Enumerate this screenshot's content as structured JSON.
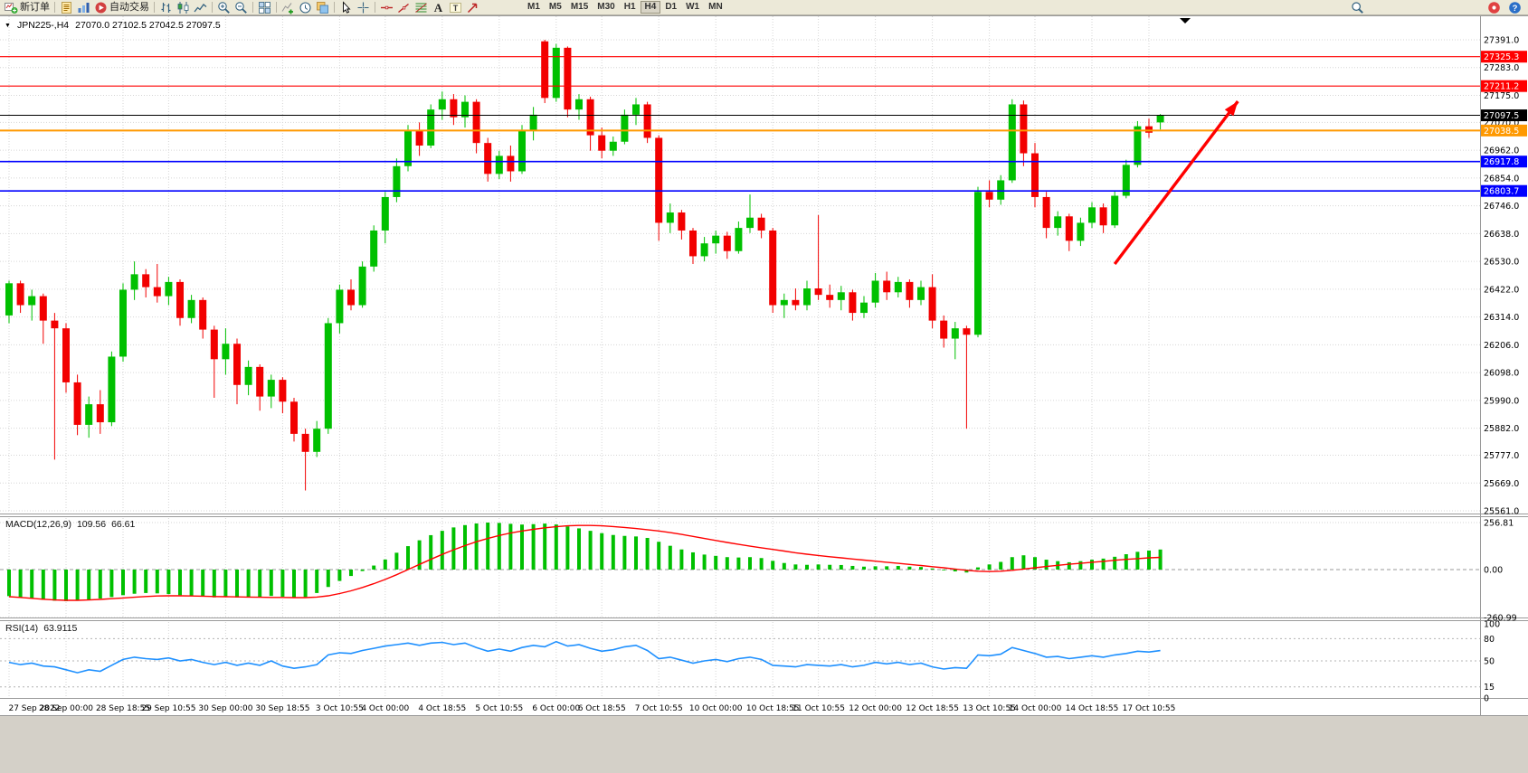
{
  "toolbar": {
    "items": [
      {
        "name": "new-order-button",
        "icon": "chart-plus",
        "label": "新订单"
      },
      {
        "sep": true
      },
      {
        "name": "metaeditor-icon",
        "icon": "doc"
      },
      {
        "name": "market-watch-icon",
        "icon": "bars-blue"
      },
      {
        "name": "autotrading-button",
        "icon": "play-red",
        "label": "自动交易"
      },
      {
        "sep": true
      },
      {
        "name": "ohlc-bars-icon",
        "icon": "ohlc"
      },
      {
        "name": "candlestick-chart-icon",
        "icon": "candles"
      },
      {
        "name": "line-chart-icon",
        "icon": "line-chart"
      },
      {
        "sep": true
      },
      {
        "name": "zoom-in-icon",
        "icon": "zoom-in"
      },
      {
        "name": "zoom-out-icon",
        "icon": "zoom-out"
      },
      {
        "sep": true
      },
      {
        "name": "tile-windows-icon",
        "icon": "tile"
      },
      {
        "sep": true
      },
      {
        "name": "indicators-icon",
        "icon": "indicator-plus"
      },
      {
        "name": "periods-icon",
        "icon": "clock"
      },
      {
        "name": "templates-icon",
        "icon": "template"
      },
      {
        "sep": true
      },
      {
        "name": "cursor-icon",
        "icon": "cursor"
      },
      {
        "name": "crosshair-icon",
        "icon": "crosshair"
      },
      {
        "sep": true
      },
      {
        "name": "horizontal-line-icon",
        "icon": "h-line"
      },
      {
        "name": "trendline-icon",
        "icon": "t-line"
      },
      {
        "name": "fibonacci-icon",
        "icon": "fibo"
      },
      {
        "name": "text-icon",
        "icon": "text-a"
      },
      {
        "name": "text-label-icon",
        "icon": "text-t"
      },
      {
        "name": "arrows-icon",
        "icon": "arrow"
      }
    ],
    "timeframes": [
      "M1",
      "M5",
      "M15",
      "M30",
      "H1",
      "H4",
      "D1",
      "W1",
      "MN"
    ],
    "active_timeframe": "H4",
    "right_items": [
      {
        "name": "search-icon",
        "icon": "search"
      },
      {
        "name": "notifications-icon",
        "icon": "circle-red"
      },
      {
        "name": "help-icon",
        "icon": "circle-blue"
      }
    ]
  },
  "chart_title": {
    "symbol_period": "JPN225-,H4",
    "ohlc_values": "27070.0 27102.5 27042.5 27097.5"
  },
  "chart_data": {
    "type": "candlestick",
    "symbol": "JPN225-",
    "period": "H4",
    "up_color": "#00C000",
    "down_color": "#F20000",
    "y_min": 25561.0,
    "y_max": 27391.0,
    "y_plain_labels": [
      "27391.0",
      "27283.0",
      "27175.0",
      "27070.0",
      "26962.0",
      "26854.0",
      "26746.0",
      "26638.0",
      "26530.0",
      "26422.0",
      "26314.0",
      "26206.0",
      "26098.0",
      "25990.0",
      "25882.0",
      "25777.0",
      "25669.0",
      "25561.0"
    ],
    "x_labels": [
      "27 Sep 2022",
      "28 Sep 00:00",
      "28 Sep 18:55",
      "29 Sep 10:55",
      "30 Sep 00:00",
      "30 Sep 18:55",
      "3 Oct 10:55",
      "4 Oct 00:00",
      "4 Oct 18:55",
      "5 Oct 10:55",
      "6 Oct 00:00",
      "6 Oct 18:55",
      "7 Oct 10:55",
      "10 Oct 00:00",
      "10 Oct 18:55",
      "11 Oct 10:55",
      "12 Oct 00:00",
      "12 Oct 18:55",
      "13 Oct 10:55",
      "14 Oct 00:00",
      "14 Oct 18:55",
      "17 Oct 10:55"
    ],
    "x_label_bar_index": [
      0,
      5,
      10,
      14,
      19,
      24,
      29,
      33,
      38,
      43,
      48,
      52,
      57,
      62,
      67,
      71,
      76,
      81,
      86,
      90,
      95,
      100
    ],
    "candles": [
      [
        26320,
        26455,
        26290,
        26445
      ],
      [
        26445,
        26455,
        26330,
        26360
      ],
      [
        26360,
        26420,
        26300,
        26395
      ],
      [
        26395,
        26405,
        26210,
        26300
      ],
      [
        26300,
        26330,
        25760,
        26270
      ],
      [
        26270,
        26290,
        26020,
        26060
      ],
      [
        26060,
        26090,
        25855,
        25895
      ],
      [
        25895,
        26005,
        25845,
        25975
      ],
      [
        25975,
        26030,
        25860,
        25905
      ],
      [
        25905,
        26180,
        25890,
        26160
      ],
      [
        26160,
        26445,
        26140,
        26420
      ],
      [
        26420,
        26530,
        26380,
        26480
      ],
      [
        26480,
        26500,
        26390,
        26430
      ],
      [
        26430,
        26520,
        26370,
        26395
      ],
      [
        26395,
        26470,
        26360,
        26450
      ],
      [
        26450,
        26460,
        26280,
        26310
      ],
      [
        26310,
        26400,
        26290,
        26380
      ],
      [
        26380,
        26390,
        26230,
        26265
      ],
      [
        26265,
        26280,
        26000,
        26150
      ],
      [
        26150,
        26270,
        26090,
        26210
      ],
      [
        26210,
        26230,
        25975,
        26050
      ],
      [
        26050,
        26145,
        26010,
        26120
      ],
      [
        26120,
        26130,
        25950,
        26005
      ],
      [
        26005,
        26090,
        25960,
        26070
      ],
      [
        26070,
        26080,
        25940,
        25985
      ],
      [
        25985,
        26000,
        25830,
        25860
      ],
      [
        25860,
        25880,
        25640,
        25790
      ],
      [
        25790,
        25910,
        25770,
        25880
      ],
      [
        25880,
        26310,
        25860,
        26290
      ],
      [
        26290,
        26440,
        26250,
        26420
      ],
      [
        26420,
        26460,
        26340,
        26360
      ],
      [
        26360,
        26530,
        26350,
        26510
      ],
      [
        26510,
        26670,
        26490,
        26650
      ],
      [
        26650,
        26800,
        26600,
        26780
      ],
      [
        26780,
        26930,
        26760,
        26900
      ],
      [
        26900,
        27060,
        26880,
        27040
      ],
      [
        27040,
        27070,
        26940,
        26980
      ],
      [
        26980,
        27140,
        26970,
        27120
      ],
      [
        27120,
        27190,
        27080,
        27160
      ],
      [
        27160,
        27180,
        27060,
        27090
      ],
      [
        27090,
        27175,
        27050,
        27150
      ],
      [
        27150,
        27160,
        26950,
        26990
      ],
      [
        26990,
        27010,
        26840,
        26870
      ],
      [
        26870,
        26960,
        26850,
        26940
      ],
      [
        26940,
        26980,
        26840,
        26880
      ],
      [
        26880,
        27060,
        26870,
        27040
      ],
      [
        27040,
        27130,
        27000,
        27100
      ],
      [
        27385,
        27391,
        27145,
        27165
      ],
      [
        27165,
        27375,
        27150,
        27360
      ],
      [
        27360,
        27365,
        27090,
        27120
      ],
      [
        27120,
        27180,
        27080,
        27160
      ],
      [
        27160,
        27170,
        26960,
        27020
      ],
      [
        27020,
        27050,
        26930,
        26960
      ],
      [
        26960,
        27015,
        26940,
        26995
      ],
      [
        26995,
        27120,
        26985,
        27100
      ],
      [
        27100,
        27165,
        27060,
        27140
      ],
      [
        27140,
        27150,
        26990,
        27010
      ],
      [
        27010,
        27020,
        26610,
        26680
      ],
      [
        26680,
        26755,
        26640,
        26720
      ],
      [
        26720,
        26730,
        26615,
        26650
      ],
      [
        26650,
        26660,
        26520,
        26550
      ],
      [
        26550,
        26625,
        26530,
        26600
      ],
      [
        26600,
        26650,
        26560,
        26630
      ],
      [
        26630,
        26645,
        26540,
        26570
      ],
      [
        26570,
        26685,
        26560,
        26660
      ],
      [
        26660,
        26790,
        26640,
        26700
      ],
      [
        26700,
        26715,
        26620,
        26650
      ],
      [
        26650,
        26660,
        26330,
        26360
      ],
      [
        26360,
        26405,
        26310,
        26380
      ],
      [
        26380,
        26425,
        26340,
        26360
      ],
      [
        26360,
        26455,
        26340,
        26425
      ],
      [
        26425,
        26710,
        26380,
        26400
      ],
      [
        26400,
        26440,
        26350,
        26380
      ],
      [
        26380,
        26435,
        26340,
        26410
      ],
      [
        26410,
        26420,
        26300,
        26330
      ],
      [
        26330,
        26395,
        26310,
        26370
      ],
      [
        26370,
        26485,
        26350,
        26455
      ],
      [
        26455,
        26490,
        26380,
        26410
      ],
      [
        26410,
        26470,
        26390,
        26450
      ],
      [
        26450,
        26460,
        26350,
        26380
      ],
      [
        26380,
        26455,
        26360,
        26430
      ],
      [
        26430,
        26480,
        26270,
        26300
      ],
      [
        26300,
        26320,
        26195,
        26230
      ],
      [
        26230,
        26295,
        26150,
        26270
      ],
      [
        26270,
        26280,
        25880,
        26245
      ],
      [
        26245,
        26820,
        26235,
        26800
      ],
      [
        26800,
        26845,
        26740,
        26770
      ],
      [
        26770,
        26865,
        26750,
        26845
      ],
      [
        26845,
        27160,
        26835,
        27140
      ],
      [
        27140,
        27155,
        26900,
        26950
      ],
      [
        26950,
        26990,
        26740,
        26780
      ],
      [
        26780,
        26800,
        26620,
        26660
      ],
      [
        26660,
        26725,
        26630,
        26705
      ],
      [
        26705,
        26715,
        26570,
        26610
      ],
      [
        26610,
        26700,
        26590,
        26680
      ],
      [
        26680,
        26760,
        26660,
        26740
      ],
      [
        26740,
        26755,
        26640,
        26670
      ],
      [
        26670,
        26805,
        26660,
        26785
      ],
      [
        26785,
        26925,
        26775,
        26905
      ],
      [
        26905,
        27075,
        26895,
        27055
      ],
      [
        27055,
        27085,
        27010,
        27030
      ],
      [
        27070,
        27102.5,
        27042.5,
        27097.5
      ]
    ],
    "horizontal_lines": [
      {
        "value": 27325.3,
        "color": "#FF0000",
        "width": 1.2,
        "badge": true
      },
      {
        "value": 27211.2,
        "color": "#FF0000",
        "width": 1.2,
        "badge": true
      },
      {
        "value": 27097.5,
        "color": "#000000",
        "width": 1,
        "badge": true,
        "role": "current-price"
      },
      {
        "value": 27038.5,
        "color": "#FF9900",
        "width": 2,
        "badge": true
      },
      {
        "value": 26917.8,
        "color": "#0000FF",
        "width": 1.6,
        "badge": true
      },
      {
        "value": 26803.7,
        "color": "#0000FF",
        "width": 1.6,
        "badge": true
      }
    ],
    "arrow_object": {
      "color": "#FF0000",
      "width": 3.4,
      "from_bar": 97,
      "from_price": 26520,
      "to_bar": 107.8,
      "to_price": 27152
    },
    "macd": {
      "label": "MACD(12,26,9)",
      "main_value": "109.56",
      "signal_value": "66.61",
      "histogram_color": "#00C000",
      "signal_color": "#FF0000",
      "scale_labels": [
        "256.81",
        "0.00",
        "-260.99"
      ],
      "scale_values": [
        256.81,
        0,
        -260.99
      ],
      "histogram": [
        -145,
        -152,
        -158,
        -165,
        -170,
        -172,
        -170,
        -165,
        -158,
        -150,
        -140,
        -132,
        -128,
        -130,
        -134,
        -140,
        -143,
        -147,
        -152,
        -148,
        -153,
        -148,
        -152,
        -144,
        -148,
        -155,
        -150,
        -128,
        -95,
        -62,
        -35,
        -8,
        22,
        55,
        92,
        128,
        160,
        188,
        212,
        230,
        243,
        252,
        257,
        255,
        250,
        246,
        248,
        251,
        246,
        236,
        225,
        212,
        199,
        189,
        184,
        181,
        173,
        152,
        130,
        110,
        94,
        82,
        75,
        68,
        66,
        68,
        63,
        48,
        36,
        28,
        26,
        28,
        26,
        25,
        20,
        16,
        18,
        18,
        20,
        16,
        14,
        6,
        -4,
        -10,
        -16,
        12,
        28,
        42,
        68,
        78,
        68,
        54,
        46,
        40,
        46,
        54,
        60,
        70,
        84,
        97,
        104,
        109.56
      ],
      "signal": [
        -148,
        -152,
        -157,
        -162,
        -166,
        -168,
        -168,
        -166,
        -163,
        -159,
        -155,
        -151,
        -147,
        -144,
        -143,
        -143,
        -144,
        -145,
        -147,
        -148,
        -149,
        -150,
        -151,
        -152,
        -152,
        -153,
        -153,
        -150,
        -143,
        -131,
        -116,
        -98,
        -77,
        -54,
        -28,
        0,
        28,
        56,
        83,
        108,
        131,
        152,
        170,
        186,
        200,
        211,
        220,
        228,
        234,
        239,
        241,
        241,
        239,
        235,
        230,
        224,
        218,
        211,
        202,
        192,
        181,
        170,
        159,
        148,
        138,
        128,
        119,
        110,
        101,
        92,
        84,
        77,
        70,
        64,
        58,
        52,
        46,
        40,
        34,
        28,
        22,
        16,
        10,
        3,
        -4,
        -9,
        -11,
        -9,
        -4,
        3,
        10,
        17,
        23,
        29,
        34,
        40,
        45,
        51,
        56,
        60,
        64,
        66.61
      ]
    },
    "rsi": {
      "label": "RSI(14)",
      "value": "63.9115",
      "line_color": "#1E90FF",
      "levels": [
        80,
        50,
        15
      ],
      "scale_labels": [
        100,
        80,
        50,
        15,
        0
      ],
      "values": [
        48,
        45,
        47,
        43,
        42,
        38,
        34,
        38,
        36,
        44,
        52,
        55,
        53,
        52,
        54,
        50,
        52,
        48,
        45,
        48,
        44,
        47,
        44,
        50,
        43,
        40,
        42,
        45,
        58,
        61,
        60,
        64,
        67,
        70,
        72,
        74,
        71,
        74,
        75,
        72,
        74,
        68,
        63,
        66,
        63,
        68,
        71,
        69,
        76,
        70,
        72,
        67,
        63,
        65,
        69,
        71,
        64,
        53,
        55,
        51,
        47,
        50,
        52,
        49,
        53,
        55,
        52,
        44,
        43,
        42,
        45,
        44,
        43,
        45,
        42,
        44,
        48,
        46,
        48,
        45,
        47,
        42,
        39,
        41,
        40,
        58,
        57,
        59,
        68,
        64,
        60,
        55,
        56,
        53,
        55,
        57,
        55,
        58,
        60,
        63,
        62,
        63.91
      ]
    }
  }
}
